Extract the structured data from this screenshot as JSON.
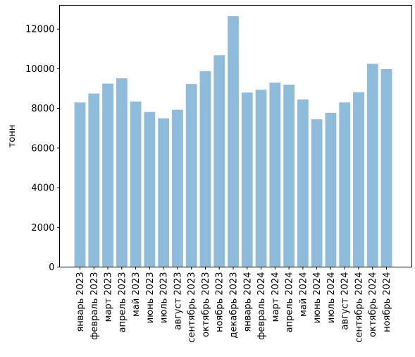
{
  "chart_data": {
    "type": "bar",
    "title": "",
    "xlabel": "",
    "ylabel": "тонн",
    "ylim": [
      0,
      13200
    ],
    "yticks": [
      0,
      2000,
      4000,
      6000,
      8000,
      10000,
      12000
    ],
    "grid": false,
    "legend": "none",
    "bar_color": "#8fbcdb",
    "categories": [
      "январь 2023",
      "февраль 2023",
      "март 2023",
      "апрель 2023",
      "май 2023",
      "июнь 2023",
      "июль 2023",
      "август 2023",
      "сентябрь 2023",
      "октябрь 2023",
      "ноябрь 2023",
      "декабрь 2023",
      "январь 2024",
      "февраль 2024",
      "март 2024",
      "апрель 2024",
      "май 2024",
      "июнь 2024",
      "июль 2024",
      "август 2024",
      "сентябрь 2024",
      "октябрь 2024",
      "ноябрь 2024"
    ],
    "values": [
      8300,
      8750,
      9250,
      9520,
      8350,
      7820,
      7500,
      7930,
      9230,
      9880,
      10680,
      12650,
      8800,
      8940,
      9300,
      9200,
      8450,
      7450,
      7780,
      8300,
      8820,
      10250,
      9980
    ]
  }
}
